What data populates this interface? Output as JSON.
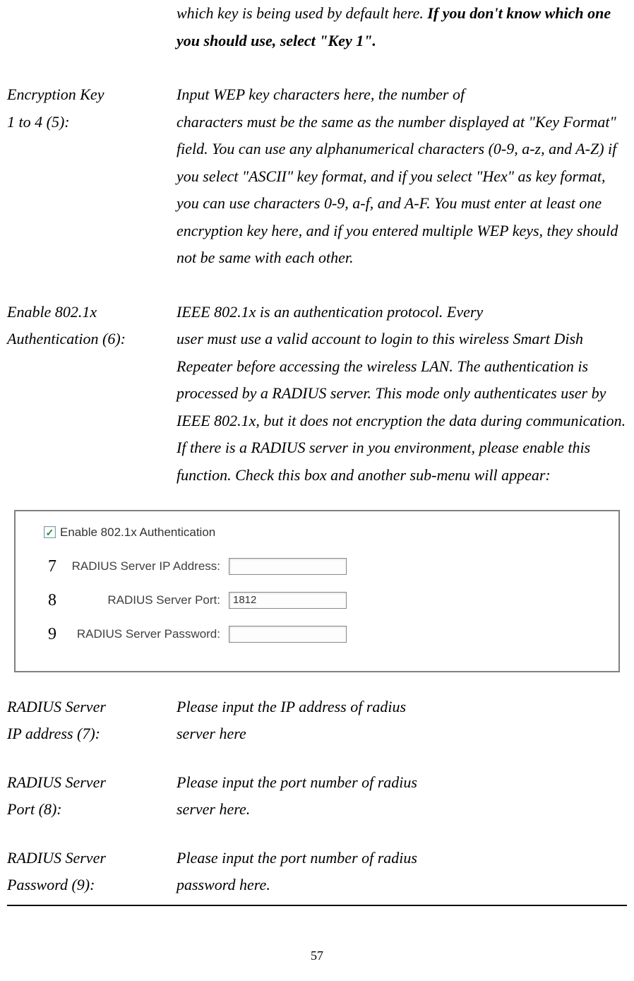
{
  "pageNumber": "57",
  "topFragment": {
    "line1_plain": "which key is being used by default here. ",
    "line1_bold": "If you don't know",
    "line2_bold": "which one you should use, select \"Key 1\"."
  },
  "sections": [
    {
      "label_line1": "Encryption Key",
      "label_line2": "1 to 4 (5):",
      "desc_line1": "Input WEP key characters here, the number of",
      "desc_rest": "characters must be the same as the number displayed at \"Key Format\" field. You can use any alphanumerical characters (0-9, a-z, and A-Z) if you select \"ASCII\" key format, and if you select \"Hex\" as key format, you can use characters 0-9, a-f, and A-F. You must enter at least one encryption key here, and if you entered multiple WEP keys, they should not be same with each other."
    },
    {
      "label_line1": "Enable 802.1x",
      "label_line2": "Authentication (6):",
      "desc_line1": "IEEE 802.1x is an authentication protocol. Every",
      "desc_rest": "user must use a valid account to login to this wireless Smart Dish Repeater before accessing the wireless LAN. The authentication is processed by a RADIUS server. This mode only authenticates user by IEEE 802.1x, but it does not encryption the data during communication. If there is a RADIUS server in you environment, please enable this function. Check this box and another sub-menu will appear:"
    }
  ],
  "screenshot": {
    "checkboxLabel": "Enable 802.1x Authentication",
    "checked": true,
    "rows": [
      {
        "num": "7",
        "label": "RADIUS Server IP Address:",
        "value": ""
      },
      {
        "num": "8",
        "label": "RADIUS Server Port:",
        "value": "1812"
      },
      {
        "num": "9",
        "label": "RADIUS Server Password:",
        "value": ""
      }
    ]
  },
  "bottomSections": [
    {
      "label_line1": "RADIUS Server",
      "label_line2": "IP address (7):",
      "desc_line1": "Please input the IP address of radius",
      "desc_line2": "server here"
    },
    {
      "label_line1": "RADIUS Server",
      "label_line2": "Port (8):",
      "desc_line1": "Please input the port number of radius",
      "desc_line2": "server here."
    },
    {
      "label_line1": "RADIUS Server",
      "label_line2": "Password (9):",
      "desc_line1": "Please input the port number of radius",
      "desc_line2": "password here."
    }
  ]
}
